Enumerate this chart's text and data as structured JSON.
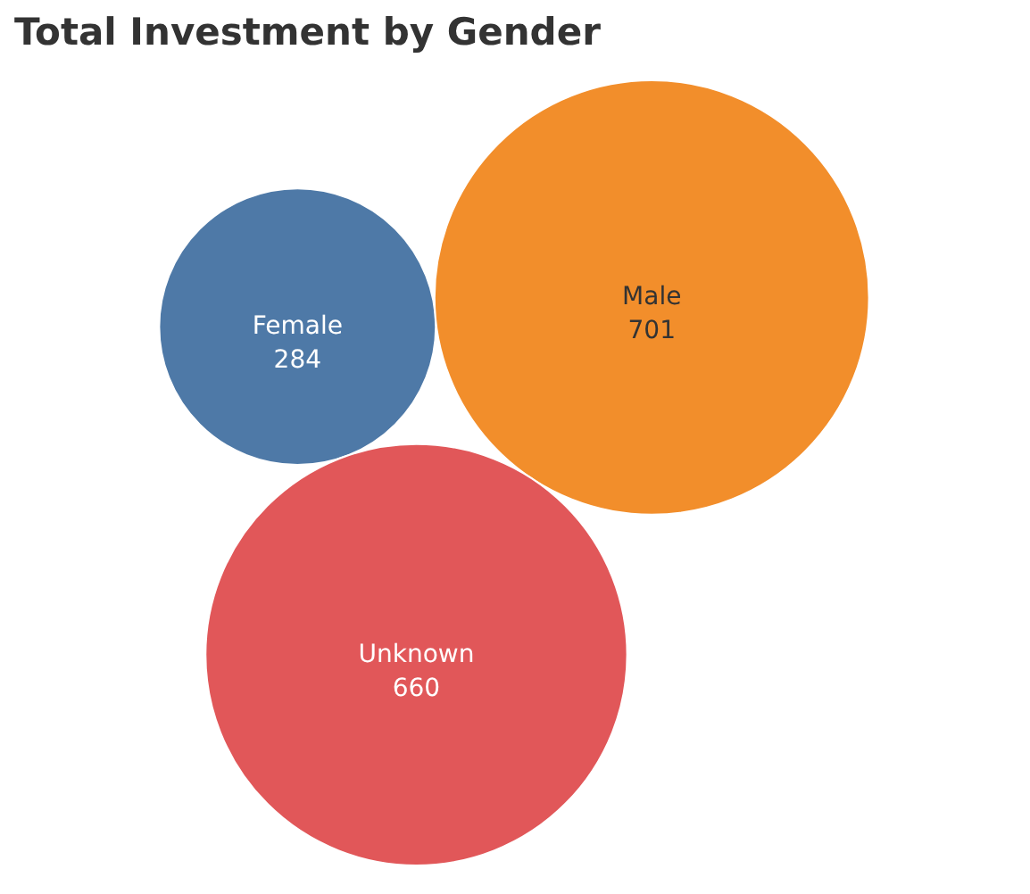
{
  "chart_data": {
    "type": "other",
    "title": "Total Investment by Gender",
    "categories": [
      "Female",
      "Male",
      "Unknown"
    ],
    "values": [
      284,
      701,
      660
    ],
    "colors": [
      "#4e79a7",
      "#f28e2b",
      "#e15759"
    ],
    "data_labels": true
  }
}
